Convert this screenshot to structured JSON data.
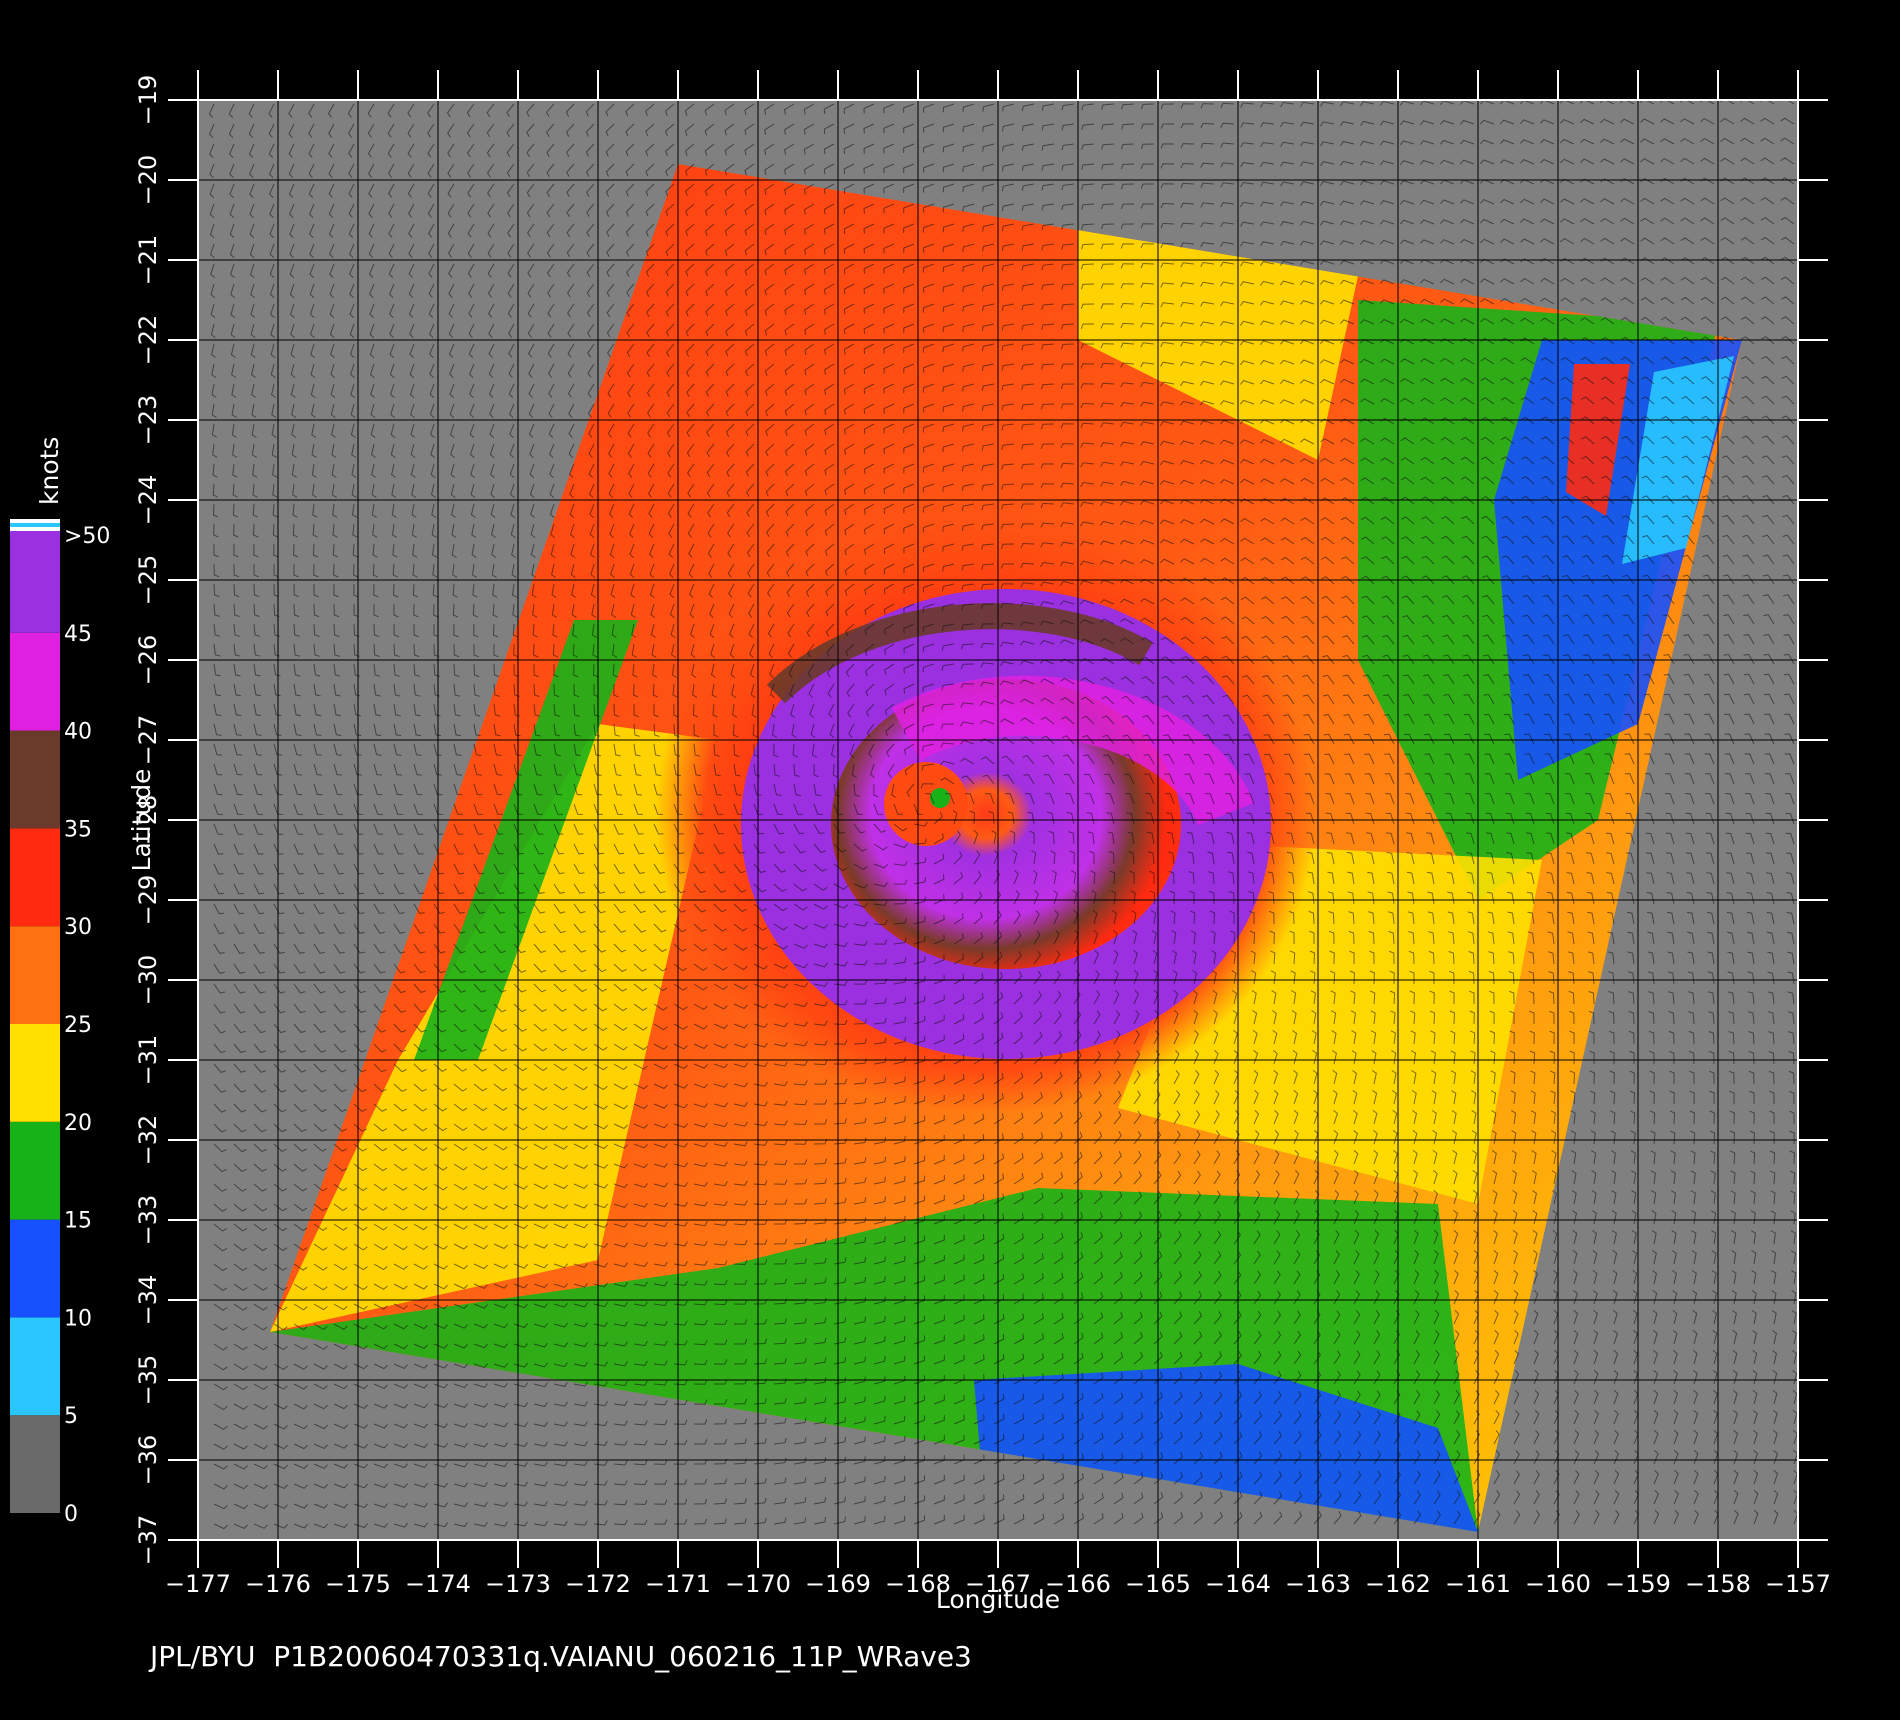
{
  "chart_data": {
    "type": "heatmap",
    "title": "",
    "xlabel": "Longitude",
    "ylabel": "Latitude",
    "xlim": [
      -177,
      -157
    ],
    "ylim": [
      -37,
      -19
    ],
    "x_ticks": [
      -177,
      -176,
      -175,
      -174,
      -173,
      -172,
      -171,
      -170,
      -169,
      -168,
      -167,
      -166,
      -165,
      -164,
      -163,
      -162,
      -161,
      -160,
      -159,
      -158,
      -157
    ],
    "y_ticks": [
      -37,
      -36,
      -35,
      -34,
      -33,
      -32,
      -31,
      -30,
      -29,
      -28,
      -27,
      -26,
      -25,
      -24,
      -23,
      -22,
      -21,
      -20,
      -19
    ],
    "grid": true,
    "swath_corners": [
      [
        -171,
        -19.8
      ],
      [
        -157.7,
        -22.0
      ],
      [
        -161,
        -36.9
      ],
      [
        -176.1,
        -34.4
      ]
    ],
    "storm_center": [
      -167.9,
      -27.8
    ],
    "colorbar": {
      "unit": "knots",
      "labels": [
        ">50",
        "45",
        "40",
        "35",
        "30",
        "25",
        "20",
        "15",
        "10",
        "5",
        "0"
      ],
      "bins": [
        {
          "min": 0,
          "max": 5,
          "color": "#6a6a6a"
        },
        {
          "min": 5,
          "max": 10,
          "color": "#29c6ff"
        },
        {
          "min": 10,
          "max": 15,
          "color": "#1650ff"
        },
        {
          "min": 15,
          "max": 20,
          "color": "#18b218"
        },
        {
          "min": 20,
          "max": 25,
          "color": "#ffe000"
        },
        {
          "min": 25,
          "max": 30,
          "color": "#ff7010"
        },
        {
          "min": 30,
          "max": 35,
          "color": "#ff2a10"
        },
        {
          "min": 35,
          "max": 40,
          "color": "#6a3a2a"
        },
        {
          "min": 40,
          "max": 45,
          "color": "#e020e0"
        },
        {
          "min": 45,
          "max": 50,
          "color": "#9a30e0"
        }
      ]
    }
  },
  "footer": {
    "text": "JPL/BYU  P1B20060470331q.VAIANU_060216_11P_WRave3"
  },
  "colors": {
    "background": "#000000",
    "land_mask": "#808080",
    "grid": "#000000",
    "barb_white": "#ffffff",
    "barb_black": "#111111"
  }
}
